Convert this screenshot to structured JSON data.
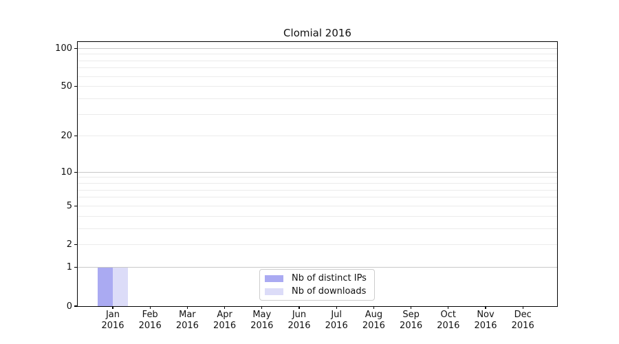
{
  "title": "Clomial 2016",
  "chart_data": {
    "type": "bar",
    "title": "Clomial 2016",
    "categories": [
      "Jan",
      "Feb",
      "Mar",
      "Apr",
      "May",
      "Jun",
      "Jul",
      "Aug",
      "Sep",
      "Oct",
      "Nov",
      "Dec"
    ],
    "category_year": "2016",
    "series": [
      {
        "name": "Nb of distinct IPs",
        "color": "#aaaaf2",
        "values": [
          1,
          0,
          0,
          0,
          0,
          0,
          0,
          0,
          0,
          0,
          0,
          0
        ]
      },
      {
        "name": "Nb of downloads",
        "color": "#dcdcf8",
        "values": [
          1,
          0,
          0,
          0,
          0,
          0,
          0,
          0,
          0,
          0,
          0,
          0
        ]
      }
    ],
    "xlabel": "",
    "ylabel": "",
    "yscale": "log1p",
    "ylim": [
      0,
      112
    ],
    "yticks": [
      {
        "value": 0,
        "label": "0"
      },
      {
        "value": 1,
        "label": "1"
      },
      {
        "value": 2,
        "label": "2"
      },
      {
        "value": 5,
        "label": "5"
      },
      {
        "value": 10,
        "label": "10"
      },
      {
        "value": 20,
        "label": "20"
      },
      {
        "value": 50,
        "label": "50"
      },
      {
        "value": 100,
        "label": "100"
      }
    ],
    "major_grid_values": [
      1,
      10,
      100
    ],
    "minor_grid_values": [
      2,
      3,
      4,
      5,
      6,
      7,
      8,
      9,
      20,
      30,
      40,
      50,
      60,
      70,
      80,
      90
    ],
    "grid": true,
    "legend_position": "inside-bottom-center",
    "colors": {
      "major_grid": "#c8c8c8",
      "minor_grid": "#ebebeb",
      "axis": "#000000",
      "text": "#111111",
      "legend_border": "#cccccc",
      "background": "#ffffff"
    }
  },
  "legend": {
    "items": [
      {
        "label": "Nb of distinct IPs",
        "color": "#aaaaf2"
      },
      {
        "label": "Nb of downloads",
        "color": "#dcdcf8"
      }
    ]
  }
}
